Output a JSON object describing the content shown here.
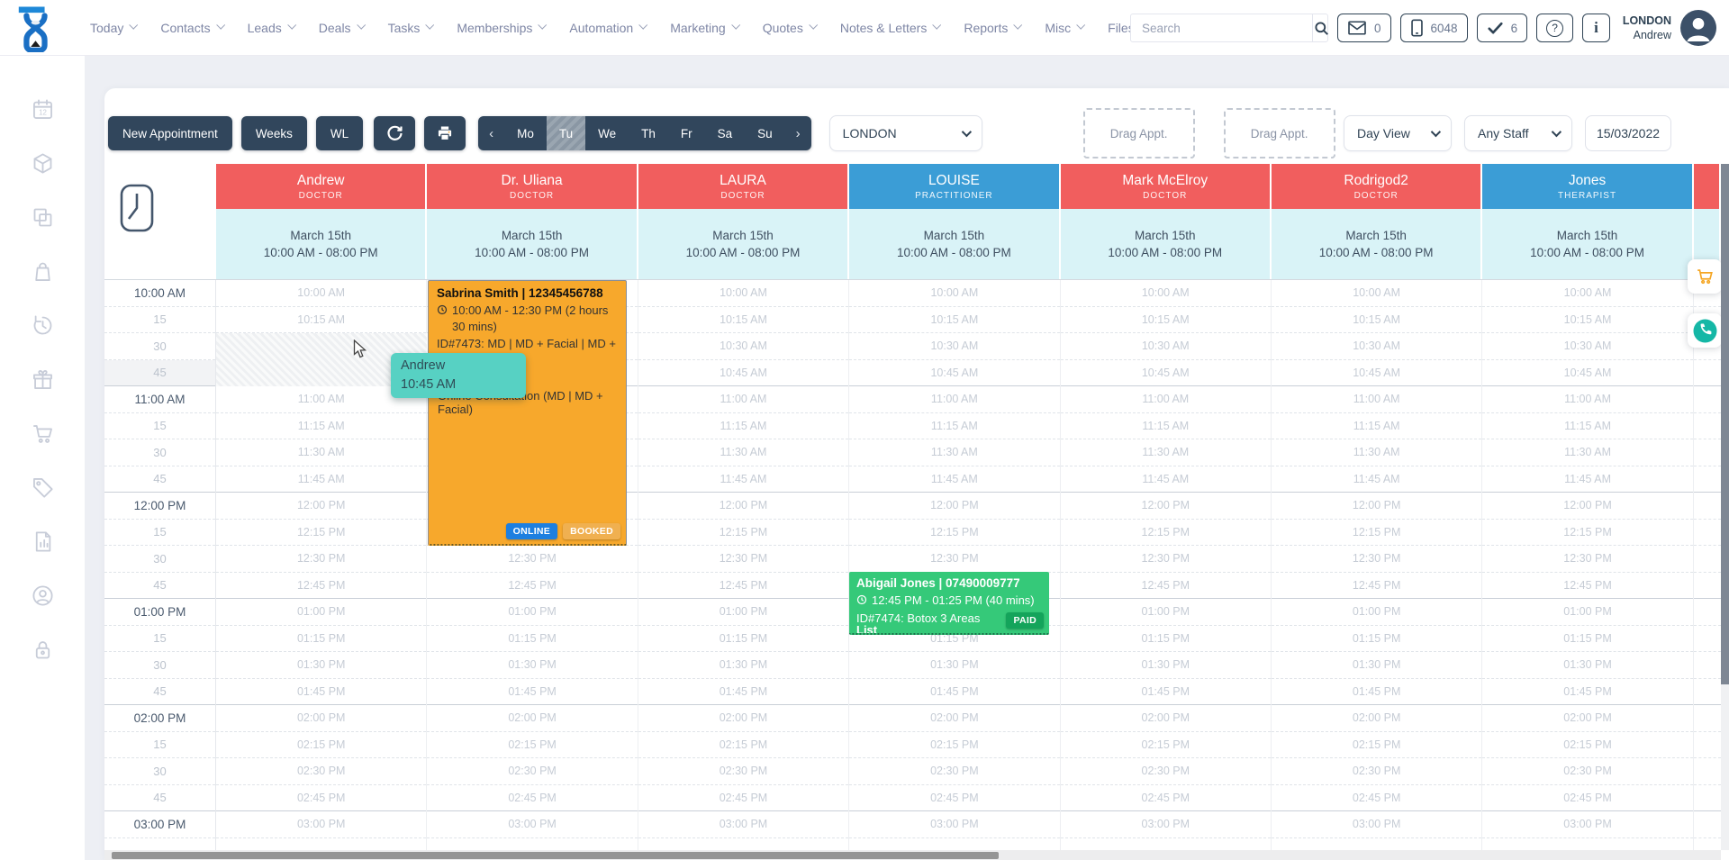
{
  "nav": {
    "items": [
      {
        "label": "Today",
        "chevron": true
      },
      {
        "label": "Contacts",
        "chevron": true
      },
      {
        "label": "Leads",
        "chevron": true
      },
      {
        "label": "Deals",
        "chevron": true
      },
      {
        "label": "Tasks",
        "chevron": true
      },
      {
        "label": "Memberships",
        "chevron": true
      },
      {
        "label": "Automation",
        "chevron": true
      },
      {
        "label": "Marketing",
        "chevron": true
      },
      {
        "label": "Quotes",
        "chevron": true
      },
      {
        "label": "Notes & Letters",
        "chevron": true
      },
      {
        "label": "Reports",
        "chevron": true
      },
      {
        "label": "Misc",
        "chevron": true
      },
      {
        "label": "Files",
        "chevron": false
      }
    ],
    "search": {
      "placeholder": "Search",
      "icon": "search-icon"
    },
    "indicators": [
      {
        "icon": "envelope-icon",
        "value": "0"
      },
      {
        "icon": "mobile-icon",
        "value": "6048"
      },
      {
        "icon": "check-icon",
        "value": "6"
      },
      {
        "icon": "help-icon",
        "value": ""
      },
      {
        "icon": "info-icon",
        "value": ""
      }
    ],
    "user": {
      "location": "LONDON",
      "name": "Andrew"
    }
  },
  "toolbar": {
    "new_appointment_label": "New Appointment",
    "weeks_label": "Weeks",
    "wl_label": "WL",
    "weekdays": [
      "Mo",
      "Tu",
      "We",
      "Th",
      "Fr",
      "Sa",
      "Su"
    ],
    "selected_weekday": "Tu",
    "prev_arrow": "‹",
    "next_arrow": "›",
    "location_filter": "LONDON",
    "drag_appt_labels": [
      "Drag Appt.",
      "Drag Appt."
    ],
    "view_filter": "Day View",
    "staff_filter": "Any Staff",
    "date_value": "15/03/2022"
  },
  "sidebar": {
    "icons": [
      "calendar-icon",
      "products-cube-icon",
      "rooms-copy-icon",
      "shopping-bag-icon",
      "history-icon",
      "gift-icon",
      "cart-icon",
      "price-tag-icon",
      "report-icon",
      "account-icon",
      "lock-icon"
    ]
  },
  "calendar": {
    "columns": [
      {
        "name": "Andrew",
        "role": "DOCTOR",
        "color": "#f15e5e",
        "date": "March 15th",
        "hours": "10:00 AM - 08:00 PM"
      },
      {
        "name": "Dr. Uliana",
        "role": "DOCTOR",
        "color": "#f15e5e",
        "date": "March 15th",
        "hours": "10:00 AM - 08:00 PM"
      },
      {
        "name": "LAURA",
        "role": "DOCTOR",
        "color": "#f15e5e",
        "date": "March 15th",
        "hours": "10:00 AM - 08:00 PM"
      },
      {
        "name": "LOUISE",
        "role": "PRACTITIONER",
        "color": "#3b9dd6",
        "date": "March 15th",
        "hours": "10:00 AM - 08:00 PM"
      },
      {
        "name": "Mark McElroy",
        "role": "DOCTOR",
        "color": "#f15e5e",
        "date": "March 15th",
        "hours": "10:00 AM - 08:00 PM"
      },
      {
        "name": "Rodrigod2",
        "role": "DOCTOR",
        "color": "#f15e5e",
        "date": "March 15th",
        "hours": "10:00 AM - 08:00 PM"
      },
      {
        "name": "Jones",
        "role": "THERAPIST",
        "color": "#3b9dd6",
        "date": "March 15th",
        "hours": "10:00 AM - 08:00 PM"
      }
    ],
    "truncated_column_color": "#f15e5e",
    "rows": [
      {
        "gutter": "10:00 AM",
        "cell": "10:00 AM",
        "hour": true
      },
      {
        "gutter": "15",
        "cell": "10:15 AM"
      },
      {
        "gutter": "30",
        "cell": "10:30 AM"
      },
      {
        "gutter": "45",
        "cell": "10:45 AM",
        "highlight": true
      },
      {
        "gutter": "11:00 AM",
        "cell": "11:00 AM",
        "hour": true
      },
      {
        "gutter": "15",
        "cell": "11:15 AM"
      },
      {
        "gutter": "30",
        "cell": "11:30 AM"
      },
      {
        "gutter": "45",
        "cell": "11:45 AM"
      },
      {
        "gutter": "12:00 PM",
        "cell": "12:00 PM",
        "hour": true
      },
      {
        "gutter": "15",
        "cell": "12:15 PM"
      },
      {
        "gutter": "30",
        "cell": "12:30 PM"
      },
      {
        "gutter": "45",
        "cell": "12:45 PM"
      },
      {
        "gutter": "01:00 PM",
        "cell": "01:00 PM",
        "hour": true
      },
      {
        "gutter": "15",
        "cell": "01:15 PM"
      },
      {
        "gutter": "30",
        "cell": "01:30 PM"
      },
      {
        "gutter": "45",
        "cell": "01:45 PM"
      },
      {
        "gutter": "02:00 PM",
        "cell": "02:00 PM",
        "hour": true
      },
      {
        "gutter": "15",
        "cell": "02:15 PM"
      },
      {
        "gutter": "30",
        "cell": "02:30 PM"
      },
      {
        "gutter": "45",
        "cell": "02:45 PM"
      },
      {
        "gutter": "03:00 PM",
        "cell": "03:00 PM",
        "hour": true
      }
    ],
    "appointments": [
      {
        "client": "Sabrina Smith | 12345456788",
        "time": "10:00 AM - 12:30 PM (2 hours 30 mins)",
        "details": "ID#7473: MD | MD + Facial | MD + Facial",
        "note": "Online Consultation (MD | MD + Facial)",
        "staff": "Dr. Uliana",
        "color": "#f7a82c",
        "status_badges": [
          "ONLINE",
          "BOOKED"
        ]
      },
      {
        "client": "Abigail Jones | 07490009777",
        "time": "12:45 PM - 01:25 PM (40 mins)",
        "details": "ID#7474: Botox 3 Areas",
        "note": "List",
        "staff": "LOUISE",
        "color": "#35c979",
        "status_badges": [
          "PAID"
        ]
      }
    ],
    "badge_colors": {
      "ONLINE": "#1d7fe0",
      "BOOKED": "#f0b050",
      "PAID": "#14a45b"
    },
    "hover_tooltip": {
      "staff": "Andrew",
      "time": "10:45 AM"
    }
  },
  "floating_buttons": [
    {
      "icon": "cart-orange-icon"
    },
    {
      "icon": "phone-green-icon"
    }
  ]
}
